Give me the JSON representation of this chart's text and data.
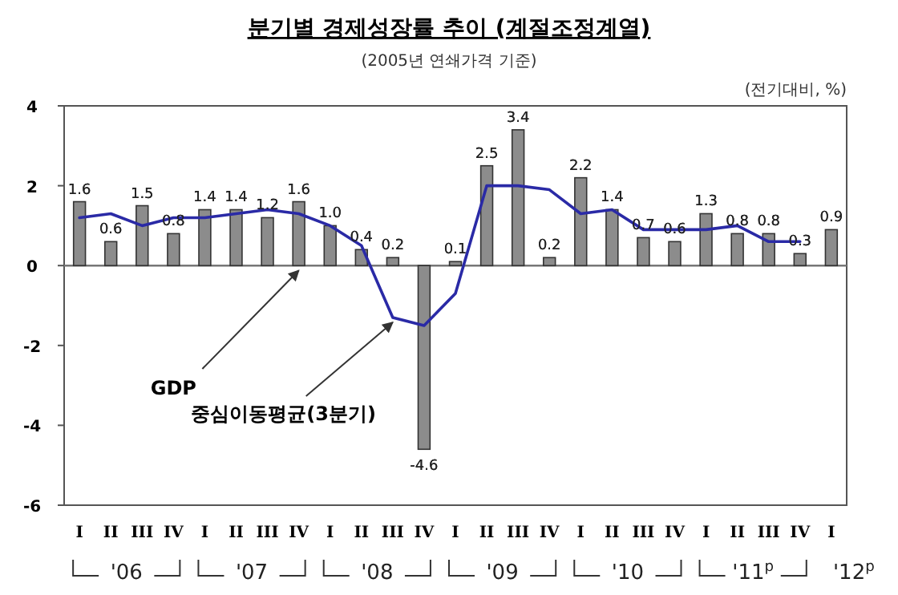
{
  "chart_data": {
    "type": "bar",
    "title": "분기별 경제성장률 추이 (계절조정계열)",
    "subtitle": "(2005년 연쇄가격 기준)",
    "annotations": [
      "(전기대비, %)",
      "'06",
      "'07",
      "'08",
      "'09",
      "'10",
      "'11$^{p}$",
      "'12$^{p}$"
    ],
    "categories": [
      "I",
      "II",
      "III",
      "IV",
      "I",
      "II",
      "III",
      "IV",
      "I",
      "II",
      "III",
      "IV",
      "I",
      "II",
      "III",
      "IV",
      "I",
      "II",
      "III",
      "IV",
      "I",
      "II",
      "III",
      "IV",
      "I"
    ],
    "series": [
      {
        "name": "GDP",
        "color": "#8c8c8c",
        "values": [
          1.6,
          0.6,
          1.5,
          0.8,
          1.4,
          1.4,
          1.2,
          1.6,
          1.0,
          0.4,
          0.2,
          -4.6,
          0.1,
          2.5,
          3.4,
          0.2,
          2.2,
          1.4,
          0.7,
          0.6,
          1.3,
          0.8,
          0.8,
          0.3,
          0.9
        ],
        "value_labels": [
          "1.6",
          "0.6",
          "1.5",
          "0.8",
          "1.4",
          "1.4",
          "1.2",
          "1.6",
          "1.0",
          "0.4",
          "0.2",
          "-4.6",
          "0.1",
          "2.5",
          "3.4",
          "0.2",
          "2.2",
          "1.4",
          "0.7",
          "0.6",
          "1.3",
          "0.8",
          "0.8",
          "0.3",
          "0.9"
        ]
      },
      {
        "name": "중심이동평균(3분기)",
        "type": "line",
        "color": "#2a2aa6",
        "values": [
          1.2,
          1.3,
          1.0,
          1.2,
          1.2,
          1.3,
          1.4,
          1.3,
          1.0,
          0.5,
          -1.3,
          -1.5,
          -0.7,
          2.0,
          2.0,
          1.9,
          1.3,
          1.4,
          0.9,
          0.9,
          0.9,
          1.0,
          0.6,
          0.6,
          null
        ]
      }
    ],
    "ylim": [
      -6,
      4
    ],
    "yticks": [
      4,
      2,
      0,
      -2,
      -4,
      -6
    ],
    "marker": "none",
    "line_style": "solid"
  }
}
